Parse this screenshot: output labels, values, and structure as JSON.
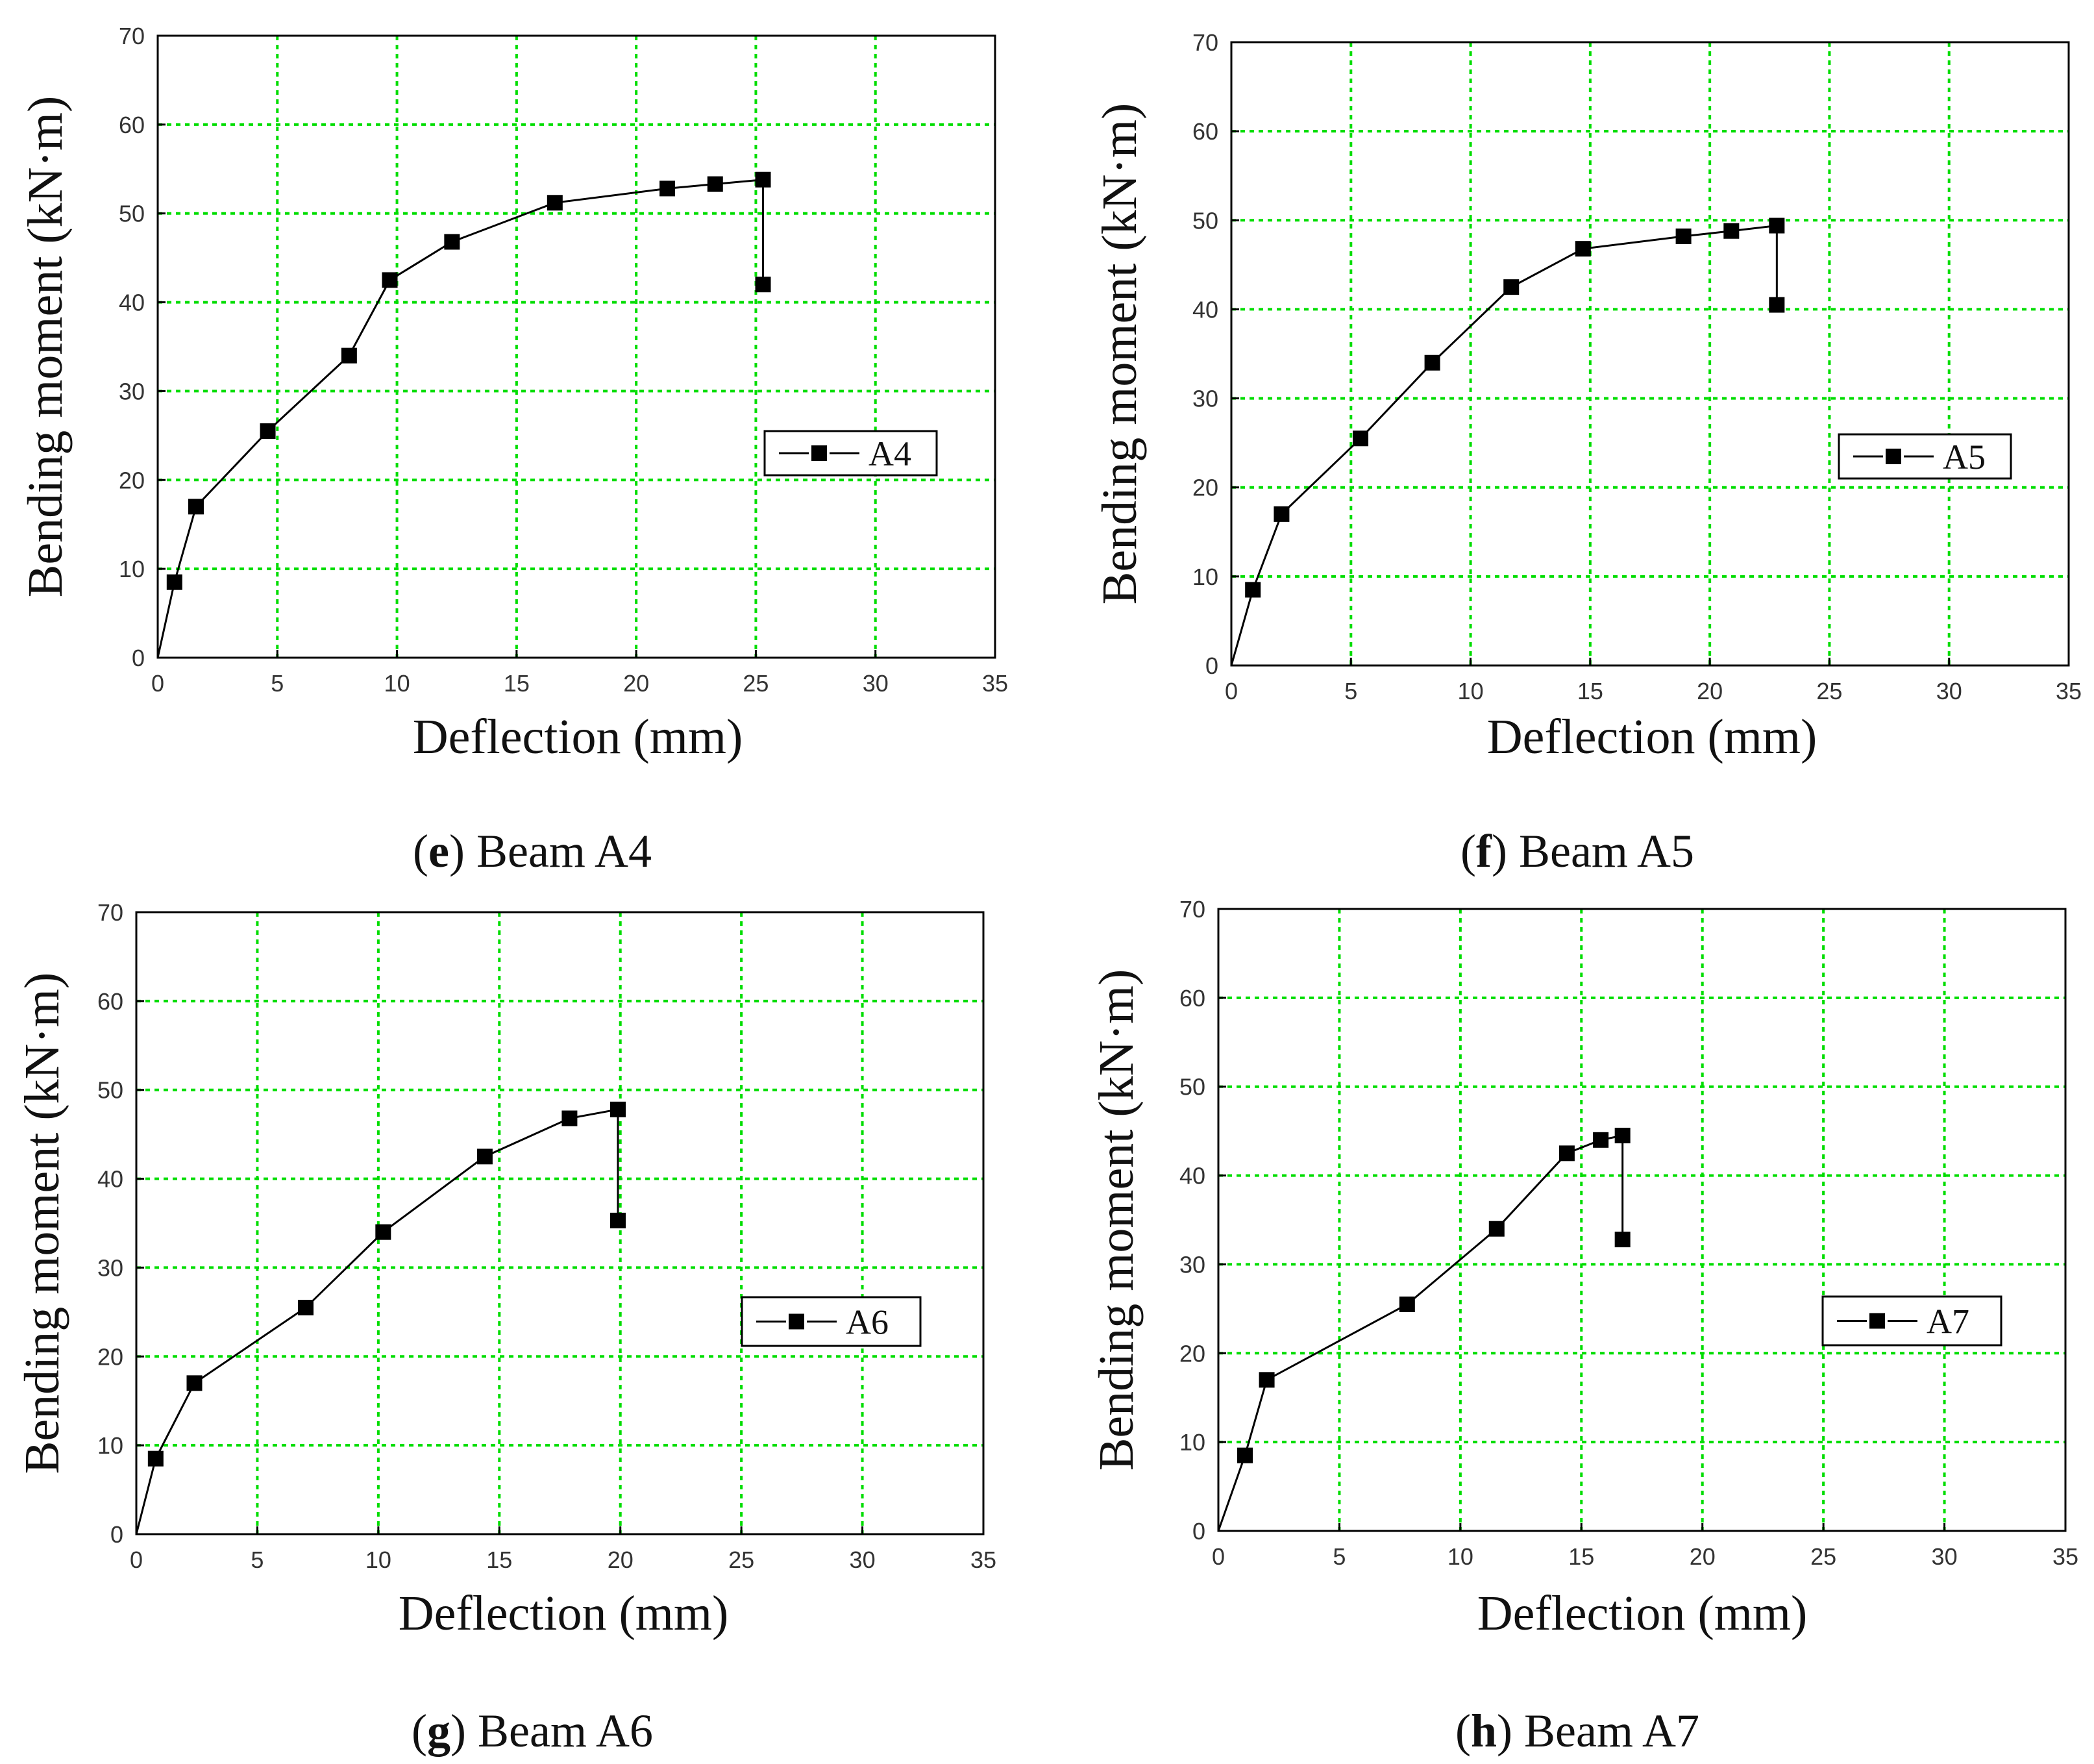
{
  "figure": {
    "panels": [
      {
        "letter": "e",
        "caption": "Beam A4"
      },
      {
        "letter": "f",
        "caption": "Beam A5"
      },
      {
        "letter": "g",
        "caption": "Beam A6"
      },
      {
        "letter": "h",
        "caption": "Beam A7"
      }
    ]
  },
  "colors": {
    "grid": "#00dd00",
    "series": "#000000",
    "frame": "#000000"
  },
  "chart_data": [
    {
      "type": "line",
      "panel": "e",
      "title": "",
      "xlabel": "Deflection (mm)",
      "ylabel": "Bending moment (kN·m)",
      "xlim": [
        0,
        35
      ],
      "ylim": [
        0,
        70
      ],
      "xticks": [
        "0",
        "5",
        "10",
        "15",
        "20",
        "25",
        "30",
        "35"
      ],
      "yticks": [
        "0",
        "10",
        "20",
        "30",
        "40",
        "50",
        "60",
        "70"
      ],
      "grid": true,
      "legend_position": "right",
      "series": [
        {
          "name": "A4",
          "x": [
            0,
            0.7,
            1.6,
            4.6,
            8.0,
            9.7,
            12.3,
            16.6,
            21.3,
            23.3,
            25.3,
            25.3
          ],
          "y": [
            0,
            8.5,
            17.0,
            25.5,
            34.0,
            42.5,
            46.8,
            51.2,
            52.8,
            53.3,
            53.8,
            42.0
          ]
        }
      ]
    },
    {
      "type": "line",
      "panel": "f",
      "title": "",
      "xlabel": "Deflection (mm)",
      "ylabel": "Bending moment (kN·m)",
      "xlim": [
        0,
        35
      ],
      "ylim": [
        0,
        70
      ],
      "xticks": [
        "0",
        "5",
        "10",
        "15",
        "20",
        "25",
        "30",
        "35"
      ],
      "yticks": [
        "0",
        "10",
        "20",
        "30",
        "40",
        "50",
        "60",
        "70"
      ],
      "grid": true,
      "legend_position": "right",
      "series": [
        {
          "name": "A5",
          "x": [
            0,
            0.9,
            2.1,
            5.4,
            8.4,
            11.7,
            14.7,
            18.9,
            20.9,
            22.8,
            22.8
          ],
          "y": [
            0,
            8.5,
            17.0,
            25.5,
            34.0,
            42.5,
            46.8,
            48.2,
            48.8,
            49.4,
            40.5
          ]
        }
      ]
    },
    {
      "type": "line",
      "panel": "g",
      "title": "",
      "xlabel": "Deflection (mm)",
      "ylabel": "Bending moment (kN·m)",
      "xlim": [
        0,
        35
      ],
      "ylim": [
        0,
        70
      ],
      "xticks": [
        "0",
        "5",
        "10",
        "15",
        "20",
        "25",
        "30",
        "35"
      ],
      "yticks": [
        "0",
        "10",
        "20",
        "30",
        "40",
        "50",
        "60",
        "70"
      ],
      "grid": true,
      "legend_position": "right",
      "series": [
        {
          "name": "A6",
          "x": [
            0,
            0.8,
            2.4,
            7.0,
            10.2,
            14.4,
            17.9,
            19.9,
            19.9
          ],
          "y": [
            0,
            8.5,
            17.0,
            25.5,
            34.0,
            42.5,
            46.8,
            47.8,
            35.3
          ]
        }
      ]
    },
    {
      "type": "line",
      "panel": "h",
      "title": "",
      "xlabel": "Deflection (mm)",
      "ylabel": "Bending moment (kN·m)",
      "xlim": [
        0,
        35
      ],
      "ylim": [
        0,
        70
      ],
      "xticks": [
        "0",
        "5",
        "10",
        "15",
        "20",
        "25",
        "30",
        "35"
      ],
      "yticks": [
        "0",
        "10",
        "20",
        "30",
        "40",
        "50",
        "60",
        "70"
      ],
      "grid": true,
      "legend_position": "right",
      "series": [
        {
          "name": "A7",
          "x": [
            0,
            1.1,
            2.0,
            7.8,
            11.5,
            14.4,
            15.8,
            16.7,
            16.7
          ],
          "y": [
            0,
            8.5,
            17.0,
            25.5,
            34.0,
            42.5,
            44.0,
            44.5,
            32.8
          ]
        }
      ]
    }
  ]
}
